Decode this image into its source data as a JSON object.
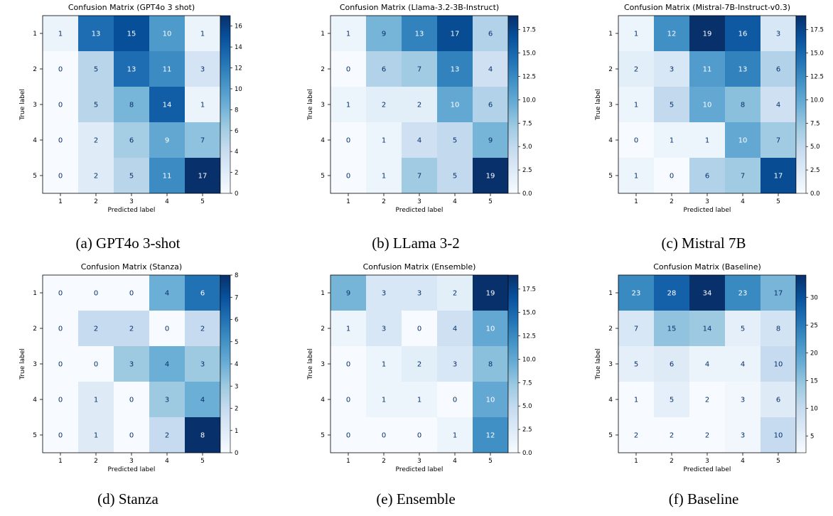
{
  "chart_data": [
    {
      "type": "heatmap",
      "title": "Confusion Matrix (GPT4o 3 shot)",
      "caption": "(a) GPT4o 3-shot",
      "xlabel": "Predicted label",
      "ylabel": "True label",
      "x_tick_labels": [
        "1",
        "2",
        "3",
        "4",
        "5"
      ],
      "y_tick_labels": [
        "1",
        "2",
        "3",
        "4",
        "5"
      ],
      "matrix": [
        [
          1,
          13,
          15,
          10,
          1
        ],
        [
          0,
          5,
          13,
          11,
          3
        ],
        [
          0,
          5,
          8,
          14,
          1
        ],
        [
          0,
          2,
          6,
          9,
          7
        ],
        [
          0,
          2,
          5,
          11,
          17
        ]
      ],
      "colorbar_range": [
        0,
        17
      ],
      "colorbar_ticks": [
        "0",
        "2",
        "4",
        "6",
        "8",
        "10",
        "12",
        "14",
        "16"
      ],
      "colormap": "Blues"
    },
    {
      "type": "heatmap",
      "title": "Confusion Matrix (Llama-3.2-3B-Instruct)",
      "caption": "(b) LLama 3-2",
      "xlabel": "Predicted label",
      "ylabel": "True label",
      "x_tick_labels": [
        "1",
        "2",
        "3",
        "4",
        "5"
      ],
      "y_tick_labels": [
        "1",
        "2",
        "3",
        "4",
        "5"
      ],
      "matrix": [
        [
          1,
          9,
          13,
          17,
          6
        ],
        [
          0,
          6,
          7,
          13,
          4
        ],
        [
          1,
          2,
          2,
          10,
          6
        ],
        [
          0,
          1,
          4,
          5,
          9
        ],
        [
          0,
          1,
          7,
          5,
          19
        ]
      ],
      "colorbar_range": [
        0,
        19
      ],
      "colorbar_ticks": [
        "0.0",
        "2.5",
        "5.0",
        "7.5",
        "10.0",
        "12.5",
        "15.0",
        "17.5"
      ],
      "colormap": "Blues"
    },
    {
      "type": "heatmap",
      "title": "Confusion Matrix (Mistral-7B-Instruct-v0.3)",
      "caption": "(c) Mistral 7B",
      "xlabel": "Predicted label",
      "ylabel": "True label",
      "x_tick_labels": [
        "1",
        "2",
        "3",
        "4",
        "5"
      ],
      "y_tick_labels": [
        "1",
        "2",
        "3",
        "4",
        "5"
      ],
      "matrix": [
        [
          1,
          12,
          19,
          16,
          3
        ],
        [
          2,
          3,
          11,
          13,
          6
        ],
        [
          1,
          5,
          10,
          8,
          4
        ],
        [
          0,
          1,
          1,
          10,
          7
        ],
        [
          1,
          0,
          6,
          7,
          17
        ]
      ],
      "colorbar_range": [
        0,
        19
      ],
      "colorbar_ticks": [
        "0.0",
        "2.5",
        "5.0",
        "7.5",
        "10.0",
        "12.5",
        "15.0",
        "17.5"
      ],
      "colormap": "Blues"
    },
    {
      "type": "heatmap",
      "title": "Confusion Matrix (Stanza)",
      "caption": "(d) Stanza",
      "xlabel": "Predicted label",
      "ylabel": "True label",
      "x_tick_labels": [
        "1",
        "2",
        "3",
        "4",
        "5"
      ],
      "y_tick_labels": [
        "1",
        "2",
        "3",
        "4",
        "5"
      ],
      "matrix": [
        [
          0,
          0,
          0,
          4,
          6
        ],
        [
          0,
          2,
          2,
          0,
          2
        ],
        [
          0,
          0,
          3,
          4,
          3
        ],
        [
          0,
          1,
          0,
          3,
          4
        ],
        [
          0,
          1,
          0,
          2,
          8
        ]
      ],
      "colorbar_range": [
        0,
        8
      ],
      "colorbar_ticks": [
        "0",
        "1",
        "2",
        "3",
        "4",
        "5",
        "6",
        "7",
        "8"
      ],
      "colormap": "Blues"
    },
    {
      "type": "heatmap",
      "title": "Confusion Matrix (Ensemble)",
      "caption": "(e) Ensemble",
      "xlabel": "Predicted label",
      "ylabel": "True label",
      "x_tick_labels": [
        "1",
        "2",
        "3",
        "4",
        "5"
      ],
      "y_tick_labels": [
        "1",
        "2",
        "3",
        "4",
        "5"
      ],
      "matrix": [
        [
          9,
          3,
          3,
          2,
          19
        ],
        [
          1,
          3,
          0,
          4,
          10
        ],
        [
          0,
          1,
          2,
          3,
          8
        ],
        [
          0,
          1,
          1,
          0,
          10
        ],
        [
          0,
          0,
          0,
          1,
          12
        ]
      ],
      "colorbar_range": [
        0,
        19
      ],
      "colorbar_ticks": [
        "0.0",
        "2.5",
        "5.0",
        "7.5",
        "10.0",
        "12.5",
        "15.0",
        "17.5"
      ],
      "colormap": "Blues"
    },
    {
      "type": "heatmap",
      "title": "Confusion Matrix (Baseline)",
      "caption": "(f) Baseline",
      "xlabel": "Predicted label",
      "ylabel": "True label",
      "x_tick_labels": [
        "1",
        "2",
        "3",
        "4",
        "5"
      ],
      "y_tick_labels": [
        "1",
        "2",
        "3",
        "4",
        "5"
      ],
      "matrix": [
        [
          23,
          28,
          34,
          23,
          17
        ],
        [
          7,
          15,
          14,
          5,
          8
        ],
        [
          5,
          6,
          4,
          4,
          10
        ],
        [
          1,
          5,
          2,
          3,
          6
        ],
        [
          2,
          2,
          2,
          3,
          10
        ]
      ],
      "colorbar_range": [
        2,
        34
      ],
      "colorbar_ticks": [
        "5",
        "10",
        "15",
        "20",
        "25",
        "30"
      ],
      "colormap": "Blues"
    }
  ]
}
